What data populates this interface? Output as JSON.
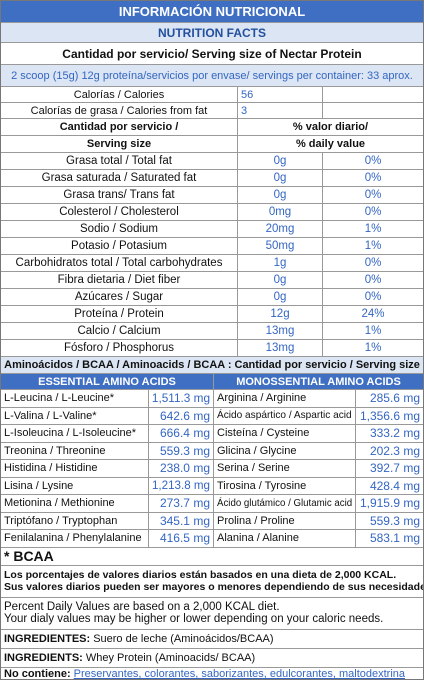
{
  "header": {
    "title": "INFORMACIÓN NUTRICIONAL",
    "subtitle": "NUTRITION FACTS",
    "serving_title": "Cantidad por servicio/ Serving size of Nectar Protein",
    "serving_info": "2 scoop (15g) 12g proteína/servicios por envase/ servings per container: 33 aprox."
  },
  "calories": [
    [
      "Calorías / Calories",
      "56"
    ],
    [
      "Calorías de grasa / Calories from fat",
      "3"
    ]
  ],
  "nutrient_header": {
    "left": [
      "Cantidad por servicio /",
      "Serving size"
    ],
    "right": [
      "% valor diario/",
      "% daily value"
    ]
  },
  "nutrients": [
    [
      "Grasa total / Total fat",
      "0g",
      "0%"
    ],
    [
      "Grasa saturada / Saturated fat",
      "0g",
      "0%"
    ],
    [
      "Grasa trans/ Trans fat",
      "0g",
      "0%"
    ],
    [
      "Colesterol / Cholesterol",
      "0mg",
      "0%"
    ],
    [
      "Sodio / Sodium",
      "20mg",
      "1%"
    ],
    [
      "Potasio / Potasium",
      "50mg",
      "1%"
    ],
    [
      "Carbohidratos total / Total carbohydrates",
      "1g",
      "0%"
    ],
    [
      "Fibra dietaria / Diet fiber",
      "0g",
      "0%"
    ],
    [
      "Azúcares / Sugar",
      "0g",
      "0%"
    ],
    [
      "Proteína / Protein",
      "12g",
      "24%"
    ],
    [
      "Calcio / Calcium",
      "13mg",
      "1%"
    ],
    [
      "Fósforo / Phosphorus",
      "13mg",
      "1%"
    ]
  ],
  "amino_title": "Aminoácidos / BCAA / Aminoacids / BCAA : Cantidad por servicio / Serving size",
  "amino_headers": [
    "ESSENTIAL AMINO ACIDS",
    "MONOSSENTIAL AMINO ACIDS"
  ],
  "amino_rows": [
    [
      "L-Leucina / L-Leucine*",
      "1,511.3 mg",
      "Arginina / Arginine",
      "285.6 mg"
    ],
    [
      "L-Valina / L-Valine*",
      "642.6 mg",
      "Ácido aspártico / Aspartic acid",
      "1,356.6 mg"
    ],
    [
      "L-Isoleucina / L-Isoleucine*",
      "666.4 mg",
      "Cisteína / Cysteine",
      "333.2 mg"
    ],
    [
      "Treonina / Threonine",
      "559.3 mg",
      "Glicina / Glycine",
      "202.3 mg"
    ],
    [
      "Histidina / Histidine",
      "238.0 mg",
      "Serina / Serine",
      "392.7 mg"
    ],
    [
      "Lisina / Lysine",
      "1,213.8 mg",
      "Tirosina / Tyrosine",
      "428.4 mg"
    ],
    [
      "Metionina / Methionine",
      "273.7 mg",
      "Ácido glutámico / Glutamic acid",
      "1,915.9 mg"
    ],
    [
      "Triptófano / Tryptophan",
      "345.1 mg",
      "Prolina / Proline",
      "559.3 mg"
    ],
    [
      "Fenilalanina / Phenylalanine",
      "416.5 mg",
      "Alanina / Alanine",
      "583.1 mg"
    ]
  ],
  "bcaa_note": "* BCAA",
  "notes_es": [
    "Los porcentajes de valores diarios están basados en una dieta  de 2,000 KCAL.",
    "Sus valores diarios pueden ser mayores o menores dependiendo de sus necesidades calóricas."
  ],
  "notes_en": [
    "Percent Daily Values are based on a 2,000 KCAL diet.",
    "Your dialy values may be higher or lower depending on your caloric needs."
  ],
  "ingredientes": {
    "label": "INGREDIENTES:",
    "text": "Suero de leche (Aminoácidos/BCAA)"
  },
  "ingredients": {
    "label": "INGREDIENTS:",
    "text": "Whey Protein (Aminoacids/ BCAA)"
  },
  "no_contiene": {
    "label": "No contiene:",
    "text": "Preservantes, colorantes, saborizantes, edulcorantes, maltodextrina"
  }
}
